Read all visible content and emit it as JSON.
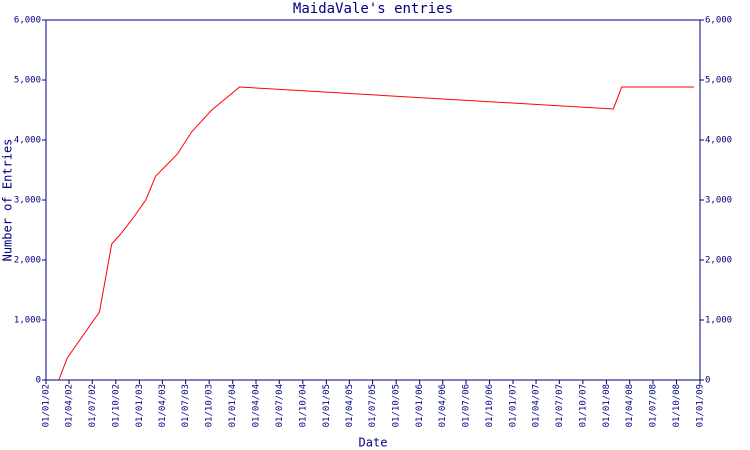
{
  "chart_data": {
    "type": "line",
    "title": "MaidaVale's entries",
    "x_label": "Date",
    "y_label": "Number of Entries",
    "x": [
      "20/02/02",
      "25/03/02",
      "29/07/02",
      "15/09/02",
      "20/10/02",
      "02/12/02",
      "26/01/03",
      "06/03/03",
      "14/04/03",
      "30/05/03",
      "24/07/03",
      "11/10/03",
      "28/01/04",
      "28/01/08",
      "01/03/08",
      "08/12/08"
    ],
    "series": [
      {
        "name": "MaidaVale",
        "color": "#ff0000",
        "values": [
          0,
          367,
          1133,
          2267,
          2433,
          2667,
          3000,
          3400,
          3567,
          3767,
          4133,
          4500,
          4883,
          4517,
          4883,
          4883
        ]
      }
    ],
    "xlim": [
      "01/01/02",
      "01/01/09"
    ],
    "xticks": [
      "01/01/02",
      "01/04/02",
      "01/07/02",
      "01/10/02",
      "01/01/03",
      "01/04/03",
      "01/07/03",
      "01/10/03",
      "01/01/04",
      "01/04/04",
      "01/07/04",
      "01/10/04",
      "01/01/05",
      "01/04/05",
      "01/07/05",
      "01/10/05",
      "01/01/06",
      "01/04/06",
      "01/07/06",
      "01/10/06",
      "01/01/07",
      "01/04/07",
      "01/07/07",
      "01/10/07",
      "01/01/08",
      "01/04/08",
      "01/07/08",
      "01/10/08",
      "01/01/09"
    ],
    "ylim": [
      0,
      6000
    ],
    "yticks": [
      0,
      {
        "value": 1000,
        "label": "1,000"
      },
      {
        "value": 2000,
        "label": "2,000"
      },
      {
        "value": 3000,
        "label": "3,000"
      },
      {
        "value": 4000,
        "label": "4,000"
      },
      {
        "value": 5000,
        "label": "5,000"
      },
      {
        "value": 6000,
        "label": "6,000"
      }
    ],
    "axis_color": "#000080",
    "grid": false
  }
}
